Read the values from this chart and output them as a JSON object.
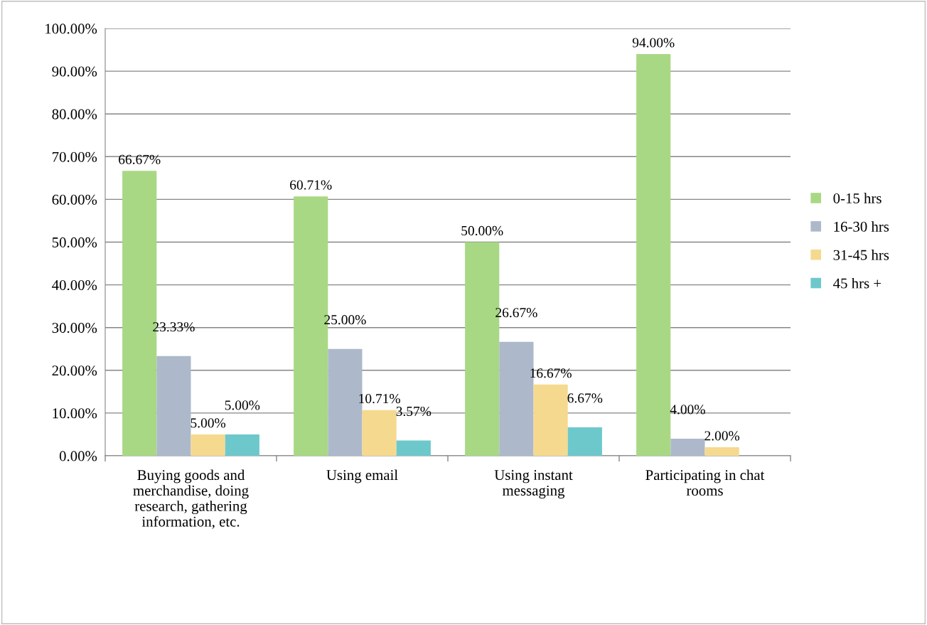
{
  "chart_data": {
    "type": "bar",
    "categories": [
      "Buying goods and merchandise, doing research, gathering information, etc.",
      "Using email",
      "Using instant messaging",
      "Participating in chat rooms"
    ],
    "series": [
      {
        "name": "0-15 hrs",
        "color": "#a9d884",
        "values": [
          66.67,
          60.71,
          50.0,
          94.0
        ],
        "value_labels": [
          "66.67%",
          "60.71%",
          "50.00%",
          "94.00%"
        ]
      },
      {
        "name": "16-30 hrs",
        "color": "#adb9ca",
        "values": [
          23.33,
          25.0,
          26.67,
          4.0
        ],
        "value_labels": [
          "23.33%",
          "25.00%",
          "26.67%",
          "4.00%"
        ]
      },
      {
        "name": "31-45 hrs",
        "color": "#f5d98f",
        "values": [
          5.0,
          10.71,
          16.67,
          2.0
        ],
        "value_labels": [
          "5.00%",
          "10.71%",
          "16.67%",
          "2.00%"
        ]
      },
      {
        "name": "45 hrs +",
        "color": "#6dc8cc",
        "values": [
          5.0,
          3.57,
          6.67,
          null
        ],
        "value_labels": [
          "5.00%",
          "3.57%",
          "6.67%",
          null
        ]
      }
    ],
    "ylim": [
      0,
      100
    ],
    "yticks": [
      {
        "value": 0,
        "label": "0.00%"
      },
      {
        "value": 10,
        "label": "10.00%"
      },
      {
        "value": 20,
        "label": "20.00%"
      },
      {
        "value": 30,
        "label": "30.00%"
      },
      {
        "value": 40,
        "label": "40.00%"
      },
      {
        "value": 50,
        "label": "50.00%"
      },
      {
        "value": 60,
        "label": "60.00%"
      },
      {
        "value": 70,
        "label": "70.00%"
      },
      {
        "value": 80,
        "label": "80.00%"
      },
      {
        "value": 90,
        "label": "90.00%"
      },
      {
        "value": 100,
        "label": "100.00%"
      }
    ],
    "grid": "y",
    "legend": "right"
  }
}
